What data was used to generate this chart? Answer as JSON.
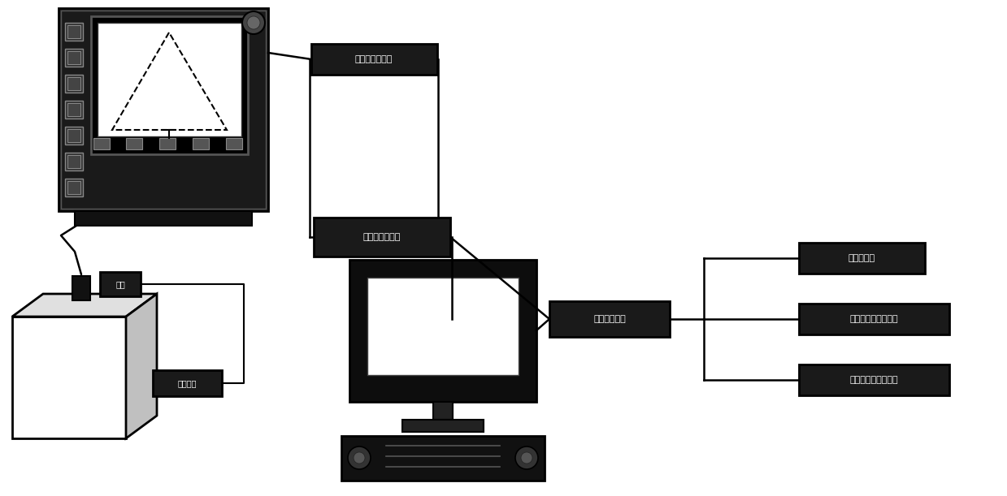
{
  "bg_color": "#ffffff",
  "box_fc": "#1a1a1a",
  "box_ec": "#000000",
  "line_color": "#000000",
  "labels": {
    "box1": "超声相控检测仪",
    "box2": "数据采集处理器",
    "box3": "图像处理系统",
    "box4": "图像预处理",
    "box5": "提取缺陷尺寸、面积",
    "box6": "三维建模、缺陷体积",
    "label_probe": "探头",
    "label_workpiece": "检测工件"
  },
  "figsize": [
    12.39,
    6.11
  ],
  "dpi": 100
}
